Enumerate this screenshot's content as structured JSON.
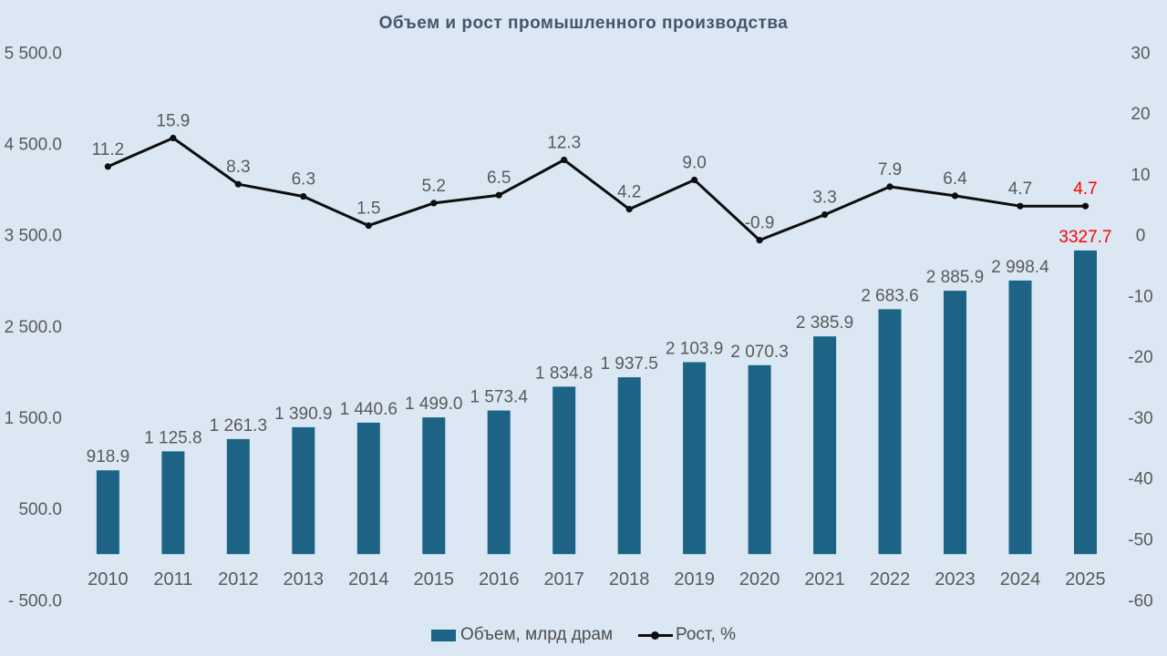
{
  "chart_data": {
    "type": "bar+line-combo",
    "title": "Объем и рост промышленного производства",
    "categories": [
      "2010",
      "2011",
      "2012",
      "2013",
      "2014",
      "2015",
      "2016",
      "2017",
      "2018",
      "2019",
      "2020",
      "2021",
      "2022",
      "2023",
      "2024",
      "2025"
    ],
    "series": [
      {
        "name": "Объем, млрд драм",
        "type": "bar",
        "axis": "left",
        "color": "#1d6385",
        "values": [
          918.9,
          1125.8,
          1261.3,
          1390.9,
          1440.6,
          1499.0,
          1573.4,
          1834.8,
          1937.5,
          2103.9,
          2070.3,
          2385.9,
          2683.6,
          2885.9,
          2998.4,
          3327.7
        ],
        "labels": [
          "918.9",
          "1 125.8",
          "1 261.3",
          "1 390.9",
          "1 440.6",
          "1 499.0",
          "1 573.4",
          "1 834.8",
          "1 937.5",
          "2 103.9",
          "2 070.3",
          "2 385.9",
          "2 683.6",
          "2 885.9",
          "2 998.4",
          "3327.7"
        ]
      },
      {
        "name": "Рост, %",
        "type": "line",
        "axis": "right",
        "color": "#0d0d0d",
        "values": [
          11.2,
          15.9,
          8.3,
          6.3,
          1.5,
          5.2,
          6.5,
          12.3,
          4.2,
          9.0,
          -0.9,
          3.3,
          7.9,
          6.4,
          4.7,
          4.7
        ],
        "labels": [
          "11.2",
          "15.9",
          "8.3",
          "6.3",
          "1.5",
          "5.2",
          "6.5",
          "12.3",
          "4.2",
          "9.0",
          "-0.9",
          "3.3",
          "7.9",
          "6.4",
          "4.7",
          "4.7"
        ]
      }
    ],
    "left_axis": {
      "min": -500,
      "max": 5500,
      "ticks": [
        {
          "label": "5 500.0",
          "value": 5500
        },
        {
          "label": "4 500.0",
          "value": 4500
        },
        {
          "label": "3 500.0",
          "value": 3500
        },
        {
          "label": "2 500.0",
          "value": 2500
        },
        {
          "label": "1 500.0",
          "value": 1500
        },
        {
          "label": "500.0",
          "value": 500
        },
        {
          "label": "- 500.0",
          "value": -500
        }
      ]
    },
    "right_axis": {
      "min": -60,
      "max": 30,
      "ticks": [
        {
          "label": "30",
          "value": 30
        },
        {
          "label": "20",
          "value": 20
        },
        {
          "label": "10",
          "value": 10
        },
        {
          "label": "0",
          "value": 0
        },
        {
          "label": "-10",
          "value": -10
        },
        {
          "label": "-20",
          "value": -20
        },
        {
          "label": "-30",
          "value": -30
        },
        {
          "label": "-40",
          "value": -40
        },
        {
          "label": "-50",
          "value": -50
        },
        {
          "label": "-60",
          "value": -60
        }
      ]
    },
    "grid": false,
    "legend_position": "bottom",
    "colors": {
      "background": "#dbe8f4",
      "title_text": "#44546a",
      "axis_text": "#595959",
      "data_label_text": "#595959",
      "highlight_last": "#ff0000"
    }
  }
}
